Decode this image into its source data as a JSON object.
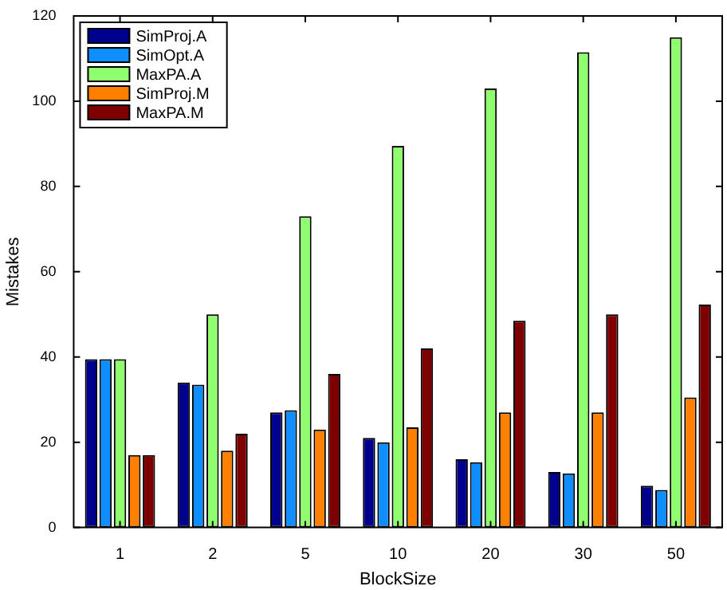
{
  "chart_data": {
    "type": "bar",
    "xlabel": "BlockSize",
    "ylabel": "Mistakes",
    "categories": [
      "1",
      "2",
      "5",
      "10",
      "20",
      "30",
      "50"
    ],
    "series": [
      {
        "name": "SimProj.A",
        "color": "#00008f",
        "values": [
          39.5,
          34,
          27,
          21,
          16,
          13,
          9.8
        ]
      },
      {
        "name": "SimOpt.A",
        "color": "#0f8fff",
        "values": [
          39.5,
          33.5,
          27.5,
          20,
          15.3,
          12.7,
          8.8
        ]
      },
      {
        "name": "MaxPA.A",
        "color": "#8fff70",
        "values": [
          39.5,
          50,
          73,
          89.5,
          103,
          111.5,
          115
        ]
      },
      {
        "name": "SimProj.M",
        "color": "#ff7f00",
        "values": [
          17,
          18,
          23,
          23.5,
          27,
          27,
          30.5
        ]
      },
      {
        "name": "MaxPA.M",
        "color": "#7f0000",
        "values": [
          17,
          22,
          36,
          42,
          48.5,
          50,
          52.3
        ]
      }
    ],
    "ylim": [
      0,
      120
    ],
    "yticks": [
      0,
      20,
      40,
      60,
      80,
      100,
      120
    ],
    "legend": "top left"
  }
}
